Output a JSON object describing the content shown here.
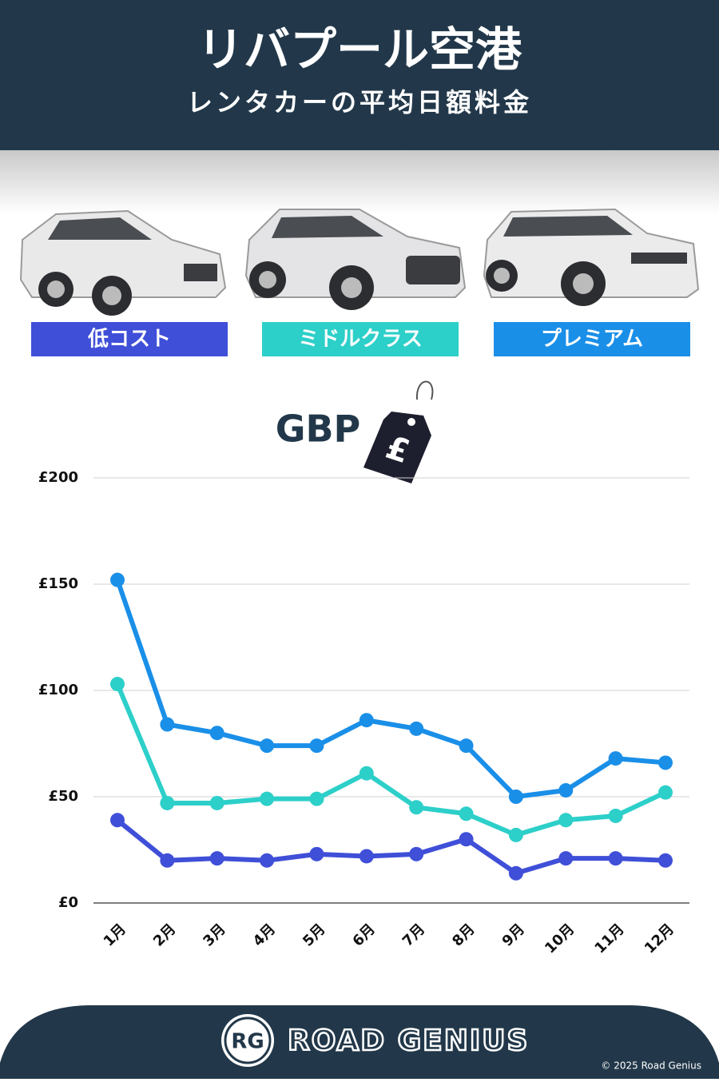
{
  "header": {
    "title": "リバプール空港",
    "subtitle": "レンタカーの平均日額料金"
  },
  "chart_data": {
    "type": "line",
    "unit_label": "GBP",
    "categories": [
      "1月",
      "2月",
      "3月",
      "4月",
      "5月",
      "6月",
      "7月",
      "8月",
      "9月",
      "10月",
      "11月",
      "12月"
    ],
    "series": [
      {
        "name": "低コスト",
        "color": "#3f4fd8",
        "values": [
          39,
          20,
          21,
          20,
          23,
          22,
          23,
          30,
          14,
          21,
          21,
          20
        ]
      },
      {
        "name": "ミドルクラス",
        "color": "#2dcfc9",
        "values": [
          103,
          47,
          47,
          49,
          49,
          61,
          45,
          42,
          32,
          39,
          41,
          52
        ]
      },
      {
        "name": "プレミアム",
        "color": "#1a8fe8",
        "values": [
          152,
          84,
          80,
          74,
          74,
          86,
          82,
          74,
          50,
          53,
          68,
          66
        ]
      }
    ],
    "ylim": [
      0,
      200
    ],
    "yticks": [
      {
        "value": 0,
        "label": "£0"
      },
      {
        "value": 50,
        "label": "£50"
      },
      {
        "value": 100,
        "label": "£100"
      },
      {
        "value": 150,
        "label": "£150"
      },
      {
        "value": 200,
        "label": "£200"
      }
    ],
    "grid": true
  },
  "footer": {
    "logo": "RG",
    "brand": "ROAD GENIUS",
    "copyright": "© 2025 Road Genius"
  }
}
